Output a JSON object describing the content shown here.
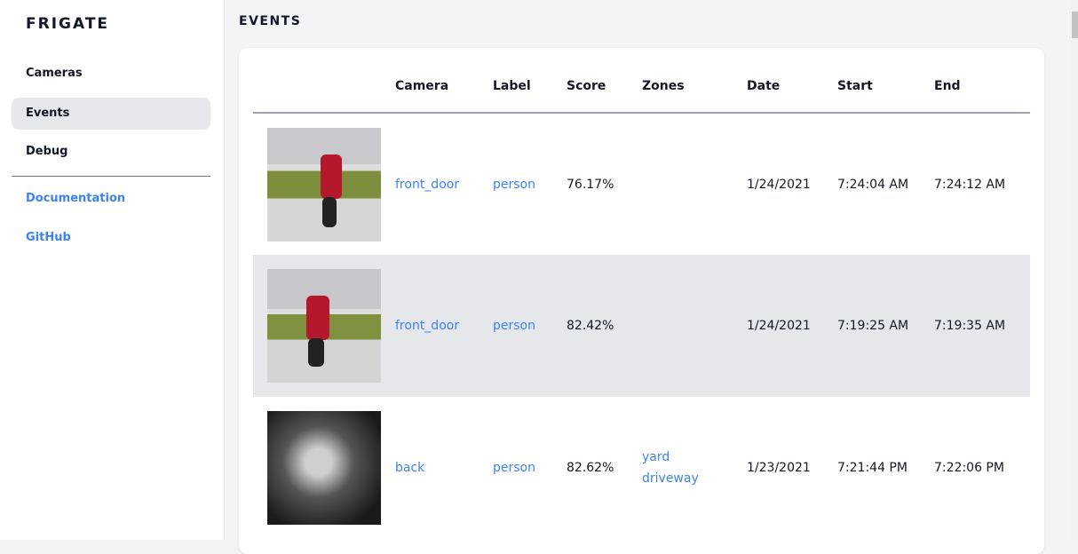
{
  "app": {
    "logo": "FRIGATE"
  },
  "sidebar": {
    "items": [
      {
        "label": "Cameras"
      },
      {
        "label": "Events"
      },
      {
        "label": "Debug"
      }
    ],
    "links": [
      {
        "label": "Documentation"
      },
      {
        "label": "GitHub"
      }
    ]
  },
  "page": {
    "title": "EVENTS"
  },
  "table": {
    "headers": [
      "Camera",
      "Label",
      "Score",
      "Zones",
      "Date",
      "Start",
      "End"
    ],
    "rows": [
      {
        "camera": "front_door",
        "label": "person",
        "score": "76.17%",
        "zones": [
          "",
          ""
        ],
        "date": "1/24/2021",
        "start": "7:24:04 AM",
        "end": "7:24:12 AM"
      },
      {
        "camera": "front_door",
        "label": "person",
        "score": "82.42%",
        "zones": [
          "",
          ""
        ],
        "date": "1/24/2021",
        "start": "7:19:25 AM",
        "end": "7:19:35 AM"
      },
      {
        "camera": "back",
        "label": "person",
        "score": "82.62%",
        "zones": [
          "yard",
          "driveway"
        ],
        "date": "1/23/2021",
        "start": "7:21:44 PM",
        "end": "7:22:06 PM"
      }
    ]
  },
  "colors": {
    "accent": "#3b82f6",
    "active_bg": "#e5e7eb"
  }
}
